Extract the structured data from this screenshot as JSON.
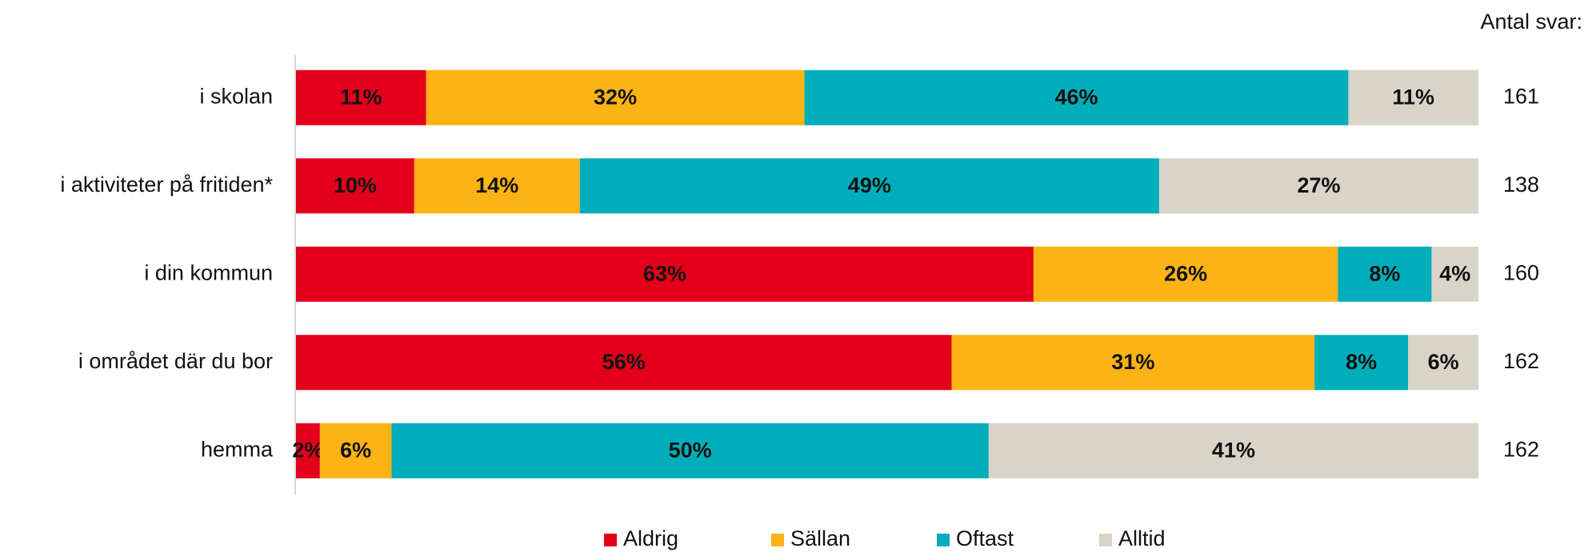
{
  "chart_data": {
    "type": "stacked_bar_horizontal",
    "categories": [
      "i skolan",
      "i aktiviteter på fritiden*",
      "i din kommun",
      "i området där du bor",
      "hemma"
    ],
    "series": [
      {
        "name": "Aldrig",
        "color": "#e2001a",
        "values": [
          11,
          10,
          63,
          56,
          2
        ],
        "value_labels": [
          "11%",
          "10%",
          "63%",
          "56%",
          "2%"
        ]
      },
      {
        "name": "Sällan",
        "color": "#fbb316",
        "values": [
          32,
          14,
          26,
          31,
          6
        ],
        "value_labels": [
          "32%",
          "14%",
          "26%",
          "31%",
          "6%"
        ]
      },
      {
        "name": "Oftast",
        "color": "#00adbb",
        "values": [
          46,
          49,
          8,
          8,
          50
        ],
        "value_labels": [
          "46%",
          "49%",
          "8%",
          "8%",
          "50%"
        ]
      },
      {
        "name": "Alltid",
        "color": "#d9d4c8",
        "values": [
          11,
          27,
          4,
          6,
          41
        ],
        "value_labels": [
          "11%",
          "27%",
          "4%",
          "6%",
          "41%"
        ]
      }
    ],
    "counts_title": "Antal svar:",
    "counts": [
      161,
      138,
      160,
      162,
      162
    ],
    "legend": "bottom"
  }
}
